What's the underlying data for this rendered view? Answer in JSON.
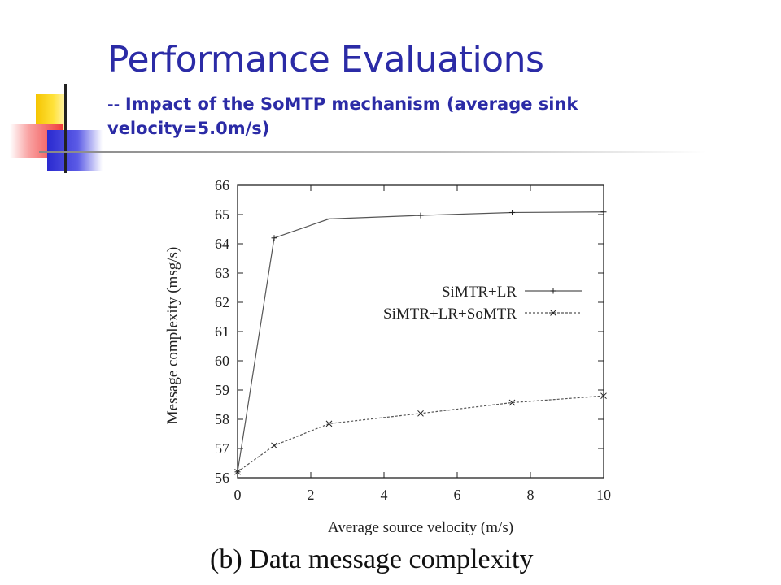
{
  "slide": {
    "title": "Performance Evaluations",
    "subtitle_prefix": "--",
    "subtitle_text": "Impact of the SoMTP mechanism (average sink velocity=5.0m/s)",
    "caption": "(b) Data message complexity"
  },
  "colors": {
    "title_blue": "#2b2ba6",
    "series_line": "#555555"
  },
  "chart_data": {
    "type": "line",
    "title": "",
    "xlabel": "Average source velocity (m/s)",
    "ylabel": "Message complexity (msg/s)",
    "xlim": [
      0,
      10
    ],
    "ylim": [
      56,
      66
    ],
    "xticks": [
      0,
      2,
      4,
      6,
      8,
      10
    ],
    "yticks": [
      56,
      57,
      58,
      59,
      60,
      61,
      62,
      63,
      64,
      65,
      66
    ],
    "grid": false,
    "legend_position": "center-right",
    "series": [
      {
        "name": "SiMTR+LR",
        "marker": "plus",
        "line": "solid",
        "x": [
          0,
          1,
          2.5,
          5,
          7.5,
          10
        ],
        "y": [
          56.2,
          64.2,
          64.85,
          64.97,
          65.07,
          65.09
        ]
      },
      {
        "name": "SiMTR+LR+SoMTR",
        "marker": "cross",
        "line": "dashed",
        "x": [
          0,
          1,
          2.5,
          5,
          7.5,
          10
        ],
        "y": [
          56.2,
          57.1,
          57.85,
          58.2,
          58.57,
          58.8
        ]
      }
    ]
  }
}
